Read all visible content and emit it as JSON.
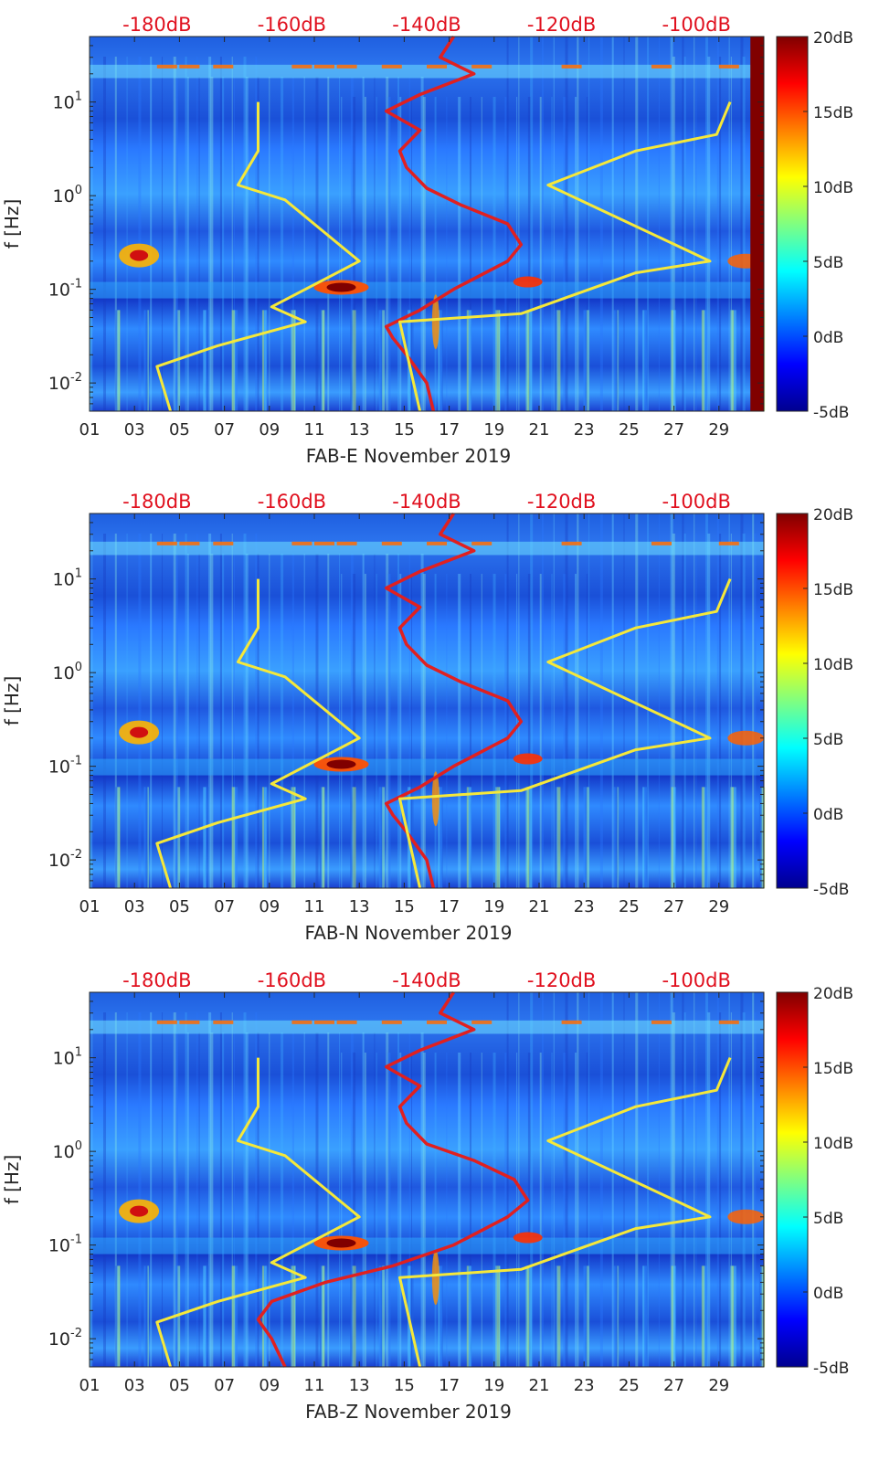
{
  "colorbar": {
    "ticks": [
      "20dB",
      "15dB",
      "10dB",
      "5dB",
      "0dB",
      "-5dB"
    ],
    "colormap": [
      "#00008f",
      "#0000ff",
      "#0080ff",
      "#00ffff",
      "#80ff80",
      "#ffff00",
      "#ff8000",
      "#ff0000",
      "#800000"
    ]
  },
  "colors": {
    "psd_curve": "#e02020",
    "noise_model": "#f5e83a",
    "top_axis_text": "#e0101e",
    "axis_text": "#262626"
  },
  "chart_data": [
    {
      "type": "heatmap",
      "xlabel": "FAB-E November 2019",
      "ylabel": "f [Hz]",
      "x_tick_labels": [
        "01",
        "03",
        "05",
        "07",
        "09",
        "11",
        "13",
        "15",
        "17",
        "19",
        "21",
        "23",
        "25",
        "27",
        "29"
      ],
      "y_tick_labels": [
        "10^1",
        "10^0",
        "10^-1",
        "10^-2"
      ],
      "top_tick_labels": [
        "-180dB",
        "-160dB",
        "-140dB",
        "-120dB",
        "-100dB"
      ],
      "x_range_days": [
        1,
        31
      ],
      "y_range_hz": [
        0.005,
        50
      ],
      "y_scale": "log",
      "color_range_db": [
        -5,
        20
      ],
      "series": [
        {
          "color": "red",
          "x_db": [
            -139,
            -140,
            -143,
            -145,
            -146,
            -141,
            -136,
            -128,
            -126,
            -128,
            -135,
            -140,
            -143,
            -144,
            -141,
            -146,
            -141,
            -133,
            -138,
            -136
          ],
          "f_hz": [
            0.005,
            0.01,
            0.02,
            0.03,
            0.04,
            0.06,
            0.1,
            0.2,
            0.3,
            0.5,
            0.8,
            1.2,
            2,
            3,
            5,
            8,
            12,
            20,
            30,
            50
          ]
        },
        {
          "color": "yellow",
          "x_db": [
            -178,
            -180,
            -171,
            -158,
            -163,
            -150,
            -161,
            -168,
            -165,
            -165
          ],
          "f_hz": [
            0.005,
            0.015,
            0.025,
            0.045,
            0.065,
            0.2,
            0.9,
            1.3,
            3,
            10
          ]
        },
        {
          "color": "yellow",
          "x_db": [
            -141,
            -144,
            -126,
            -109,
            -98,
            -122,
            -109,
            -97,
            -95
          ],
          "f_hz": [
            0.005,
            0.045,
            0.055,
            0.15,
            0.2,
            1.3,
            3,
            4.5,
            10
          ]
        }
      ]
    },
    {
      "type": "heatmap",
      "xlabel": "FAB-N November 2019",
      "ylabel": "f [Hz]",
      "x_tick_labels": [
        "01",
        "03",
        "05",
        "07",
        "09",
        "11",
        "13",
        "15",
        "17",
        "19",
        "21",
        "23",
        "25",
        "27",
        "29"
      ],
      "y_tick_labels": [
        "10^1",
        "10^0",
        "10^-1",
        "10^-2"
      ],
      "top_tick_labels": [
        "-180dB",
        "-160dB",
        "-140dB",
        "-120dB",
        "-100dB"
      ],
      "x_range_days": [
        1,
        31
      ],
      "y_range_hz": [
        0.005,
        50
      ],
      "y_scale": "log",
      "color_range_db": [
        -5,
        20
      ],
      "series": [
        {
          "color": "red",
          "x_db": [
            -139,
            -140,
            -143,
            -145,
            -146,
            -141,
            -136,
            -128,
            -126,
            -128,
            -135,
            -140,
            -143,
            -144,
            -141,
            -146,
            -141,
            -133,
            -138,
            -136
          ],
          "f_hz": [
            0.005,
            0.01,
            0.02,
            0.03,
            0.04,
            0.06,
            0.1,
            0.2,
            0.3,
            0.5,
            0.8,
            1.2,
            2,
            3,
            5,
            8,
            12,
            20,
            30,
            50
          ]
        },
        {
          "color": "yellow",
          "x_db": [
            -178,
            -180,
            -171,
            -158,
            -163,
            -150,
            -161,
            -168,
            -165,
            -165
          ],
          "f_hz": [
            0.005,
            0.015,
            0.025,
            0.045,
            0.065,
            0.2,
            0.9,
            1.3,
            3,
            10
          ]
        },
        {
          "color": "yellow",
          "x_db": [
            -141,
            -144,
            -126,
            -109,
            -98,
            -122,
            -109,
            -97,
            -95
          ],
          "f_hz": [
            0.005,
            0.045,
            0.055,
            0.15,
            0.2,
            1.3,
            3,
            4.5,
            10
          ]
        }
      ]
    },
    {
      "type": "heatmap",
      "xlabel": "FAB-Z November 2019",
      "ylabel": "f [Hz]",
      "x_tick_labels": [
        "01",
        "03",
        "05",
        "07",
        "09",
        "11",
        "13",
        "15",
        "17",
        "19",
        "21",
        "23",
        "25",
        "27",
        "29"
      ],
      "y_tick_labels": [
        "10^1",
        "10^0",
        "10^-1",
        "10^-2"
      ],
      "top_tick_labels": [
        "-180dB",
        "-160dB",
        "-140dB",
        "-120dB",
        "-100dB"
      ],
      "x_range_days": [
        1,
        31
      ],
      "y_range_hz": [
        0.005,
        50
      ],
      "y_scale": "log",
      "color_range_db": [
        -5,
        20
      ],
      "series": [
        {
          "color": "red",
          "x_db": [
            -161,
            -163,
            -165,
            -163,
            -155,
            -145,
            -136,
            -128,
            -125,
            -127,
            -133,
            -140,
            -143,
            -144,
            -141,
            -146,
            -141,
            -133,
            -138,
            -136
          ],
          "f_hz": [
            0.005,
            0.01,
            0.016,
            0.025,
            0.04,
            0.06,
            0.1,
            0.2,
            0.3,
            0.5,
            0.8,
            1.2,
            2,
            3,
            5,
            8,
            12,
            20,
            30,
            50
          ]
        },
        {
          "color": "yellow",
          "x_db": [
            -178,
            -180,
            -171,
            -158,
            -163,
            -150,
            -161,
            -168,
            -165,
            -165
          ],
          "f_hz": [
            0.005,
            0.015,
            0.025,
            0.045,
            0.065,
            0.2,
            0.9,
            1.3,
            3,
            10
          ]
        },
        {
          "color": "yellow",
          "x_db": [
            -141,
            -144,
            -126,
            -109,
            -98,
            -122,
            -109,
            -97,
            -95
          ],
          "f_hz": [
            0.005,
            0.045,
            0.055,
            0.15,
            0.2,
            1.3,
            3,
            4.5,
            10
          ]
        }
      ]
    }
  ]
}
